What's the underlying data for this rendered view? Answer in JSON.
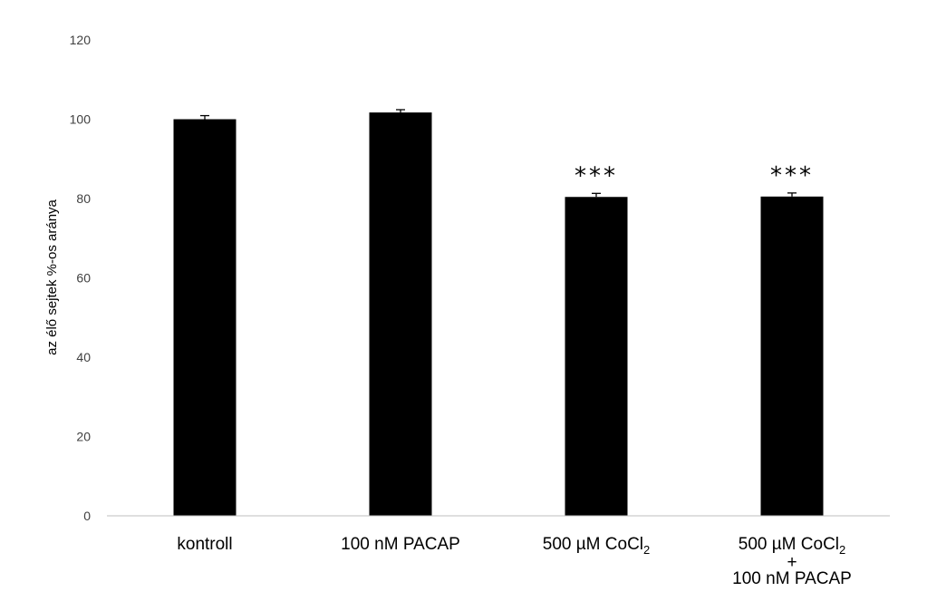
{
  "chart_data": {
    "type": "bar",
    "ylabel": "az élő sejtek %-os aránya",
    "xlabel": "",
    "ylim": [
      0,
      120
    ],
    "yticks": [
      "0",
      "20",
      "40",
      "60",
      "80",
      "100",
      "120"
    ],
    "grid": false,
    "colors": {
      "bar": "#000000",
      "axis": "#bfbfbf"
    },
    "categories": [
      {
        "lines": [
          "kontroll"
        ]
      },
      {
        "lines": [
          "100 nM PACAP"
        ]
      },
      {
        "lines": [
          "500 µM CoCl",
          "2"
        ]
      },
      {
        "lines": [
          "500 µM CoCl",
          "2",
          "+",
          "100 nM PACAP"
        ]
      }
    ],
    "values": [
      100,
      101.7,
      80.4,
      80.5
    ],
    "errors": [
      0.9,
      0.7,
      0.9,
      0.9
    ],
    "significance": [
      "",
      "",
      "***",
      "***"
    ]
  }
}
